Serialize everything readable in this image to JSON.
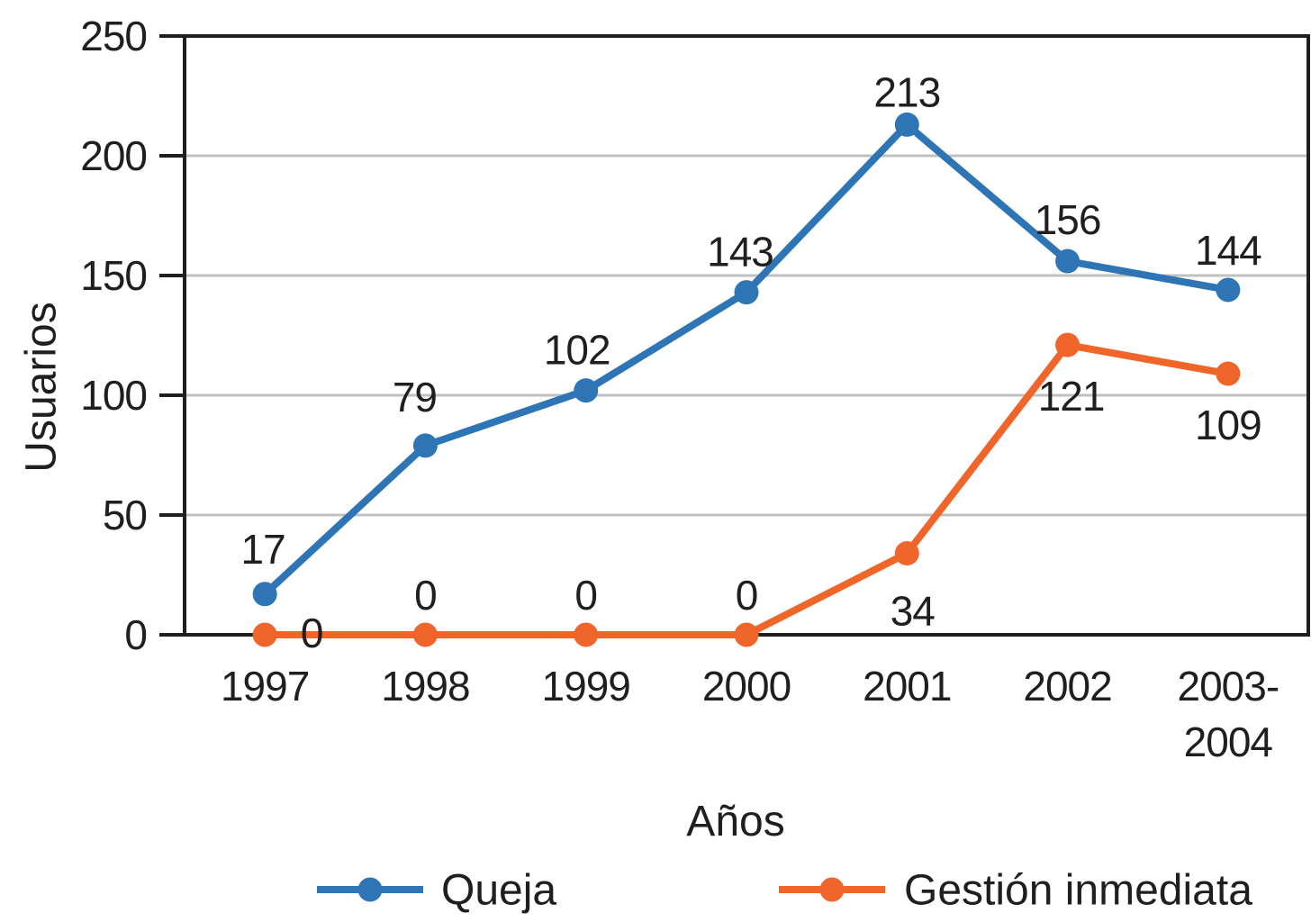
{
  "chart_data": {
    "type": "line",
    "title": "",
    "xlabel": "Años",
    "ylabel": "Usuarios",
    "categories": [
      "1997",
      "1998",
      "1999",
      "2000",
      "2001",
      "2002",
      "2003-2004"
    ],
    "categories_display": [
      [
        "1997"
      ],
      [
        "1998"
      ],
      [
        "1999"
      ],
      [
        "2000"
      ],
      [
        "2001"
      ],
      [
        "2002"
      ],
      [
        "2003-",
        "2004"
      ]
    ],
    "series": [
      {
        "name": "Queja",
        "color": "#2E75B6",
        "values": [
          17,
          79,
          102,
          143,
          213,
          156,
          144
        ]
      },
      {
        "name": "Gestión inmediata",
        "color": "#F0662A",
        "values": [
          0,
          0,
          0,
          0,
          34,
          121,
          109
        ]
      }
    ],
    "ylim": [
      0,
      250
    ],
    "y_ticks": [
      0,
      50,
      100,
      150,
      200,
      250
    ],
    "grid": "horizontal",
    "legend_position": "bottom",
    "data_labels": true,
    "colors": {
      "axis": "#1f1f1f",
      "gridline": "#C0C0C0",
      "text": "#1f1f1f",
      "background": "#ffffff"
    }
  }
}
